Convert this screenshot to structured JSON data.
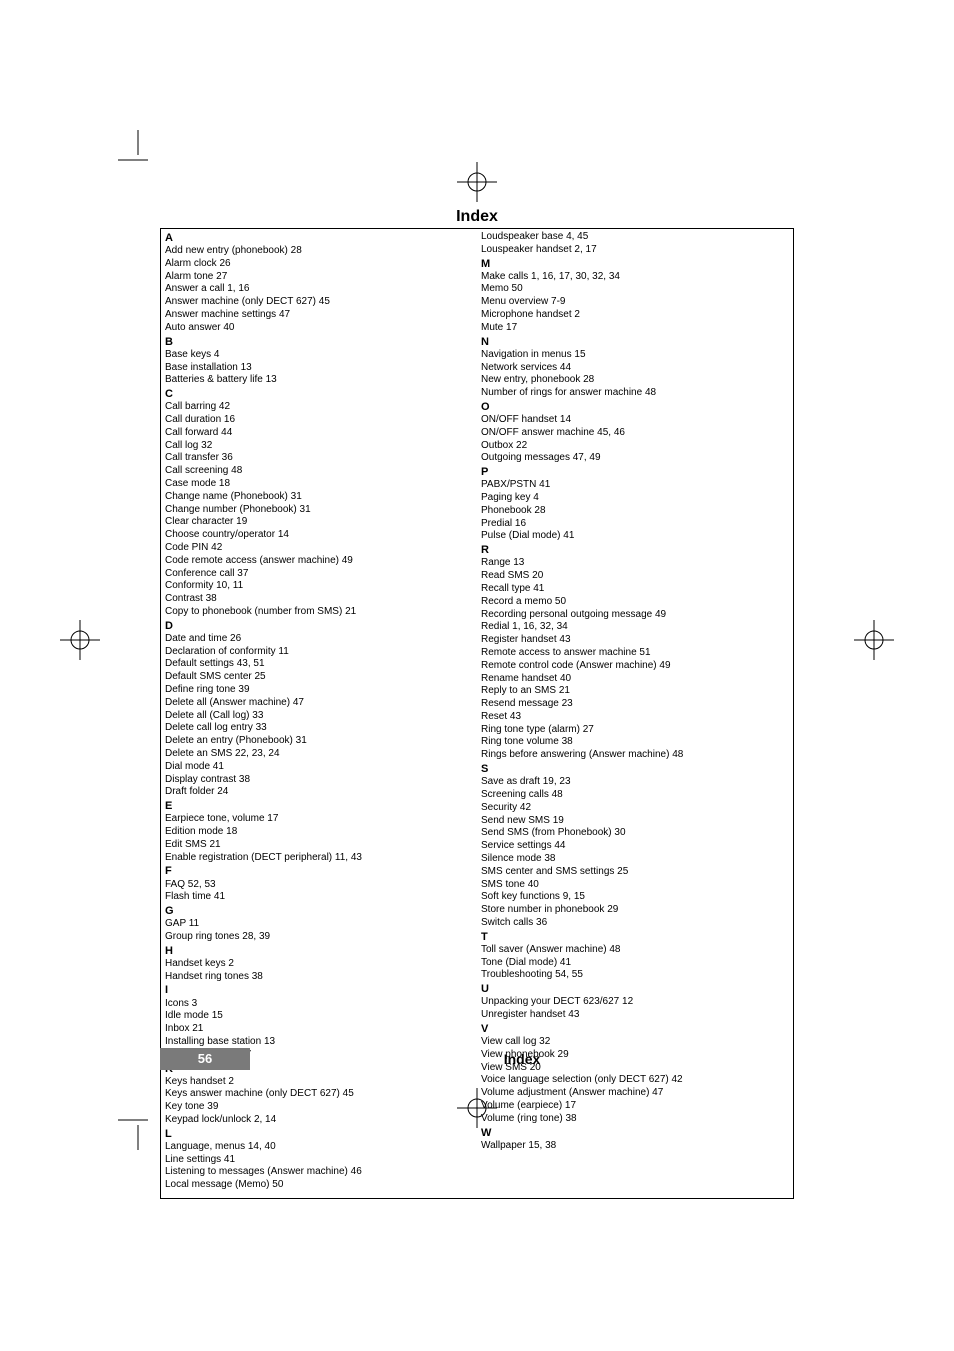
{
  "heading": "Index",
  "footer": {
    "page": "56",
    "label": "Index"
  },
  "colors": {
    "footer_bg": "#7a7a7a",
    "footer_fg": "#ffffff",
    "text": "#000000"
  },
  "left": {
    "A": [
      "Add new entry (phonebook) 28",
      "Alarm clock 26",
      "Alarm tone 27",
      "Answer a call 1, 16",
      "Answer machine (only DECT 627) 45",
      "Answer machine settings 47",
      "Auto answer 40"
    ],
    "B": [
      "Base keys 4",
      "Base installation 13",
      "Batteries & battery life 13"
    ],
    "C": [
      "Call barring 42",
      "Call duration 16",
      "Call forward 44",
      "Call log 32",
      "Call transfer 36",
      "Call screening 48",
      "Case mode 18",
      "Change name (Phonebook) 31",
      "Change number (Phonebook) 31",
      "Clear character 19",
      "Choose country/operator 14",
      "Code PIN 42",
      "Code remote access (answer machine) 49",
      "Conference call 37",
      "Conformity 10, 11",
      "Contrast 38",
      "Copy to phonebook (number from SMS) 21"
    ],
    "D": [
      "Date and time 26",
      "Declaration of conformity 11",
      "Default settings 43, 51",
      "Default SMS center 25",
      "Define ring tone 39",
      "Delete all (Answer machine) 47",
      "Delete all (Call log) 33",
      "Delete call log entry 33",
      "Delete an entry (Phonebook) 31",
      "Delete an SMS 22, 23, 24",
      "Dial mode 41",
      "Display contrast 38",
      "Draft folder 24"
    ],
    "E": [
      "Earpiece tone, volume 17",
      "Edition mode 18",
      "Edit SMS 21",
      "Enable registration (DECT peripheral) 11, 43"
    ],
    "F": [
      "FAQ 52, 53",
      "Flash time 41"
    ],
    "G": [
      "GAP 11",
      "Group ring tones 28, 39"
    ],
    "H": [
      "Handset keys 2",
      "Handset ring tones 38"
    ],
    "I": [
      "Icons 3",
      "Idle mode 15",
      "Inbox 21",
      "Installing base station 13",
      "Intercom 17, 36, 37"
    ],
    "K": [
      "Keys handset 2",
      "Keys answer machine (only DECT 627) 45",
      "Key tone 39",
      "Keypad lock/unlock 2, 14"
    ],
    "L": [
      "Language, menus 14, 40",
      "Line settings 41",
      "Listening to messages (Answer machine) 46",
      "Local message (Memo) 50"
    ]
  },
  "right": {
    "_pre": [
      "Loudspeaker base 4, 45",
      "Louspeaker handset 2, 17"
    ],
    "M": [
      "Make calls 1, 16, 17, 30, 32, 34",
      "Memo 50",
      "Menu overview 7-9",
      "Microphone handset 2",
      "Mute 17"
    ],
    "N": [
      "Navigation in menus 15",
      "Network services 44",
      "New entry, phonebook 28",
      "Number of rings for answer machine 48"
    ],
    "O": [
      "ON/OFF handset 14",
      "ON/OFF answer machine 45, 46",
      "Outbox 22",
      "Outgoing messages 47, 49"
    ],
    "P": [
      "PABX/PSTN 41",
      "Paging key 4",
      "Phonebook 28",
      "Predial 16",
      "Pulse (Dial mode) 41"
    ],
    "R": [
      "Range 13",
      "Read SMS 20",
      "Recall type 41",
      "Record a memo 50",
      "Recording personal outgoing message 49",
      "Redial 1, 16, 32, 34",
      "Register handset 43",
      "Remote access to answer machine 51",
      "Remote control code (Answer machine) 49",
      "Rename handset 40",
      "Reply to an SMS 21",
      "Resend message 23",
      "Reset 43",
      "Ring tone type (alarm) 27",
      "Ring tone volume 38",
      "Rings before answering (Answer machine) 48"
    ],
    "S": [
      "Save as draft 19, 23",
      "Screening calls 48",
      "Security 42",
      "Send new SMS 19",
      "Send SMS (from Phonebook) 30",
      "Service settings 44",
      "Silence mode 38",
      "SMS center and SMS settings 25",
      "SMS tone 40",
      "Soft key functions 9, 15",
      "Store number in phonebook 29",
      "Switch calls 36"
    ],
    "T": [
      "Toll saver (Answer machine) 48",
      "Tone (Dial mode) 41",
      "Troubleshooting 54, 55"
    ],
    "U": [
      "Unpacking your DECT 623/627 12",
      "Unregister handset 43"
    ],
    "V": [
      "View call log 32",
      "View phonebook 29",
      "View SMS 20",
      "Voice language selection (only DECT 627) 42",
      "Volume adjustment (Answer machine) 47",
      "Volume (earpiece) 17",
      "Volume (ring tone) 38"
    ],
    "W": [
      "Wallpaper 15, 38"
    ]
  }
}
